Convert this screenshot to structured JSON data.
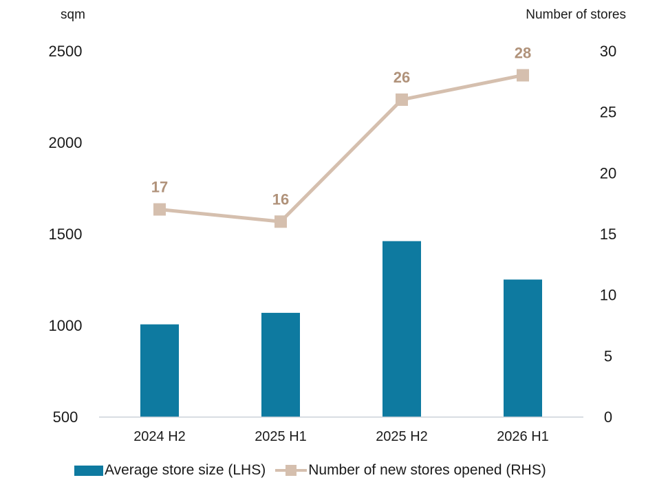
{
  "chart_data": {
    "type": "bar",
    "categories": [
      "2024 H2",
      "2025 H1",
      "2025 H2",
      "2026 H1"
    ],
    "series": [
      {
        "name": "Average store size (LHS)",
        "type": "bar",
        "axis": "left",
        "values": [
          1005,
          1068,
          1460,
          1250
        ],
        "color": "#0e7aa0"
      },
      {
        "name": "Number of new stores opened (RHS)",
        "type": "line",
        "axis": "right",
        "values": [
          17,
          16,
          26,
          28
        ],
        "data_labels": [
          "17",
          "16",
          "26",
          "28"
        ],
        "color": "#d5bfae",
        "label_color": "#b0927a",
        "marker": "square"
      }
    ],
    "left_axis": {
      "label": "sqm",
      "ylim": [
        500,
        2500
      ],
      "ticks": [
        "500",
        "1000",
        "1500",
        "2000",
        "2500"
      ]
    },
    "right_axis": {
      "label": "Number of stores",
      "ylim": [
        0,
        30
      ],
      "ticks": [
        "0",
        "5",
        "10",
        "15",
        "20",
        "25",
        "30"
      ]
    },
    "grid": false,
    "legend_position": "bottom"
  }
}
